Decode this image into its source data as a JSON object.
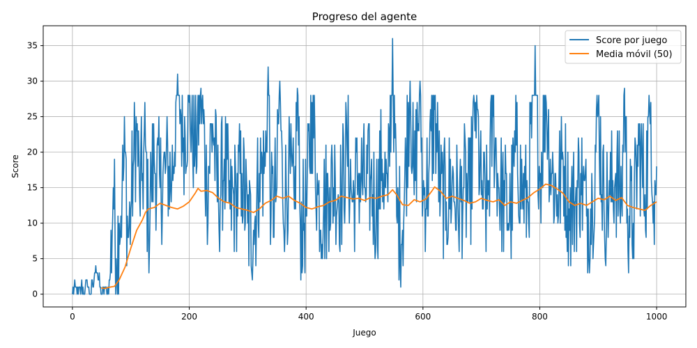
{
  "chart_data": {
    "type": "line",
    "title": "Progreso del agente",
    "xlabel": "Juego",
    "ylabel": "Score",
    "xlim": [
      -50,
      1050
    ],
    "ylim": [
      -1.8,
      37.8
    ],
    "xticks": [
      0,
      200,
      400,
      600,
      800,
      1000
    ],
    "yticks": [
      0,
      5,
      10,
      15,
      20,
      25,
      30,
      35
    ],
    "grid": true,
    "legend_position": "top-right",
    "colors": {
      "raw": "#1f77b4",
      "ma": "#ff7f0e"
    },
    "series": [
      {
        "name": "Score por juego",
        "kind": "raw",
        "x_start": 0,
        "anchors": [
          [
            0,
            0
          ],
          [
            5,
            1
          ],
          [
            10,
            0
          ],
          [
            15,
            1
          ],
          [
            20,
            0
          ],
          [
            25,
            2
          ],
          [
            30,
            0
          ],
          [
            35,
            1
          ],
          [
            40,
            4
          ],
          [
            45,
            2
          ],
          [
            50,
            0
          ],
          [
            55,
            1
          ],
          [
            60,
            0
          ],
          [
            65,
            3
          ],
          [
            70,
            15
          ],
          [
            75,
            5
          ],
          [
            80,
            10
          ],
          [
            85,
            14
          ],
          [
            90,
            20
          ],
          [
            95,
            8
          ],
          [
            100,
            12
          ],
          [
            105,
            19
          ],
          [
            110,
            23
          ],
          [
            115,
            14
          ],
          [
            120,
            17
          ],
          [
            125,
            21
          ],
          [
            130,
            9
          ],
          [
            135,
            16
          ],
          [
            140,
            19
          ],
          [
            150,
            15
          ],
          [
            160,
            18
          ],
          [
            170,
            16
          ],
          [
            180,
            31
          ],
          [
            190,
            22
          ],
          [
            200,
            27
          ],
          [
            210,
            20
          ],
          [
            220,
            29
          ],
          [
            230,
            15
          ],
          [
            240,
            24
          ],
          [
            250,
            13
          ],
          [
            260,
            19
          ],
          [
            270,
            12
          ],
          [
            280,
            14
          ],
          [
            290,
            17
          ],
          [
            300,
            10
          ],
          [
            310,
            9
          ],
          [
            320,
            17
          ],
          [
            330,
            18
          ],
          [
            335,
            32
          ],
          [
            340,
            11
          ],
          [
            350,
            15
          ],
          [
            355,
            30
          ],
          [
            360,
            13
          ],
          [
            370,
            17
          ],
          [
            380,
            12
          ],
          [
            385,
            29
          ],
          [
            390,
            10
          ],
          [
            400,
            11
          ],
          [
            410,
            27
          ],
          [
            420,
            14
          ],
          [
            430,
            12
          ],
          [
            440,
            15
          ],
          [
            450,
            16
          ],
          [
            460,
            14
          ],
          [
            470,
            21
          ],
          [
            480,
            13
          ],
          [
            490,
            17
          ],
          [
            500,
            15
          ],
          [
            510,
            16
          ],
          [
            520,
            12
          ],
          [
            530,
            19
          ],
          [
            540,
            13
          ],
          [
            548,
            36
          ],
          [
            555,
            11
          ],
          [
            565,
            9
          ],
          [
            578,
            30
          ],
          [
            585,
            14
          ],
          [
            595,
            30
          ],
          [
            600,
            13
          ],
          [
            610,
            17
          ],
          [
            620,
            26
          ],
          [
            630,
            14
          ],
          [
            640,
            13
          ],
          [
            650,
            16
          ],
          [
            660,
            12
          ],
          [
            670,
            15
          ],
          [
            680,
            13
          ],
          [
            690,
            27
          ],
          [
            700,
            14
          ],
          [
            710,
            12
          ],
          [
            720,
            25
          ],
          [
            730,
            15
          ],
          [
            740,
            13
          ],
          [
            750,
            11
          ],
          [
            760,
            21
          ],
          [
            770,
            14
          ],
          [
            780,
            13
          ],
          [
            792,
            35
          ],
          [
            800,
            16
          ],
          [
            810,
            28
          ],
          [
            820,
            17
          ],
          [
            830,
            14
          ],
          [
            840,
            19
          ],
          [
            850,
            12
          ],
          [
            860,
            13
          ],
          [
            870,
            17
          ],
          [
            880,
            11
          ],
          [
            890,
            13
          ],
          [
            900,
            26
          ],
          [
            910,
            12
          ],
          [
            920,
            14
          ],
          [
            930,
            17
          ],
          [
            940,
            13
          ],
          [
            945,
            29
          ],
          [
            950,
            12
          ],
          [
            960,
            10
          ],
          [
            970,
            21
          ],
          [
            980,
            14
          ],
          [
            990,
            27
          ],
          [
            995,
            13
          ],
          [
            1000,
            18
          ]
        ],
        "noise_amplitude": 9,
        "points": 1001
      },
      {
        "name": "Media móvil (50)",
        "kind": "ma",
        "values_xy": [
          [
            49,
            0.9
          ],
          [
            55,
            0.8
          ],
          [
            65,
            1.0
          ],
          [
            72,
            1.1
          ],
          [
            80,
            2.0
          ],
          [
            90,
            3.8
          ],
          [
            100,
            6.5
          ],
          [
            110,
            9.0
          ],
          [
            120,
            10.5
          ],
          [
            125,
            11.5
          ],
          [
            130,
            12.0
          ],
          [
            140,
            12.2
          ],
          [
            150,
            12.8
          ],
          [
            160,
            12.5
          ],
          [
            170,
            12.2
          ],
          [
            180,
            12.0
          ],
          [
            190,
            12.4
          ],
          [
            200,
            13.0
          ],
          [
            210,
            14.2
          ],
          [
            215,
            14.9
          ],
          [
            220,
            14.5
          ],
          [
            230,
            14.6
          ],
          [
            240,
            14.3
          ],
          [
            250,
            13.5
          ],
          [
            260,
            13.0
          ],
          [
            270,
            12.8
          ],
          [
            280,
            12.2
          ],
          [
            290,
            12.0
          ],
          [
            300,
            11.8
          ],
          [
            310,
            11.5
          ],
          [
            320,
            12.0
          ],
          [
            330,
            12.8
          ],
          [
            340,
            13.2
          ],
          [
            350,
            13.8
          ],
          [
            360,
            13.5
          ],
          [
            370,
            13.8
          ],
          [
            380,
            13.2
          ],
          [
            390,
            12.8
          ],
          [
            400,
            12.2
          ],
          [
            410,
            12.0
          ],
          [
            420,
            12.3
          ],
          [
            430,
            12.5
          ],
          [
            440,
            13.0
          ],
          [
            450,
            13.2
          ],
          [
            460,
            13.8
          ],
          [
            470,
            13.6
          ],
          [
            480,
            13.4
          ],
          [
            490,
            13.5
          ],
          [
            500,
            13.2
          ],
          [
            510,
            13.6
          ],
          [
            520,
            13.5
          ],
          [
            530,
            13.8
          ],
          [
            540,
            14.0
          ],
          [
            548,
            14.7
          ],
          [
            555,
            14.0
          ],
          [
            565,
            12.6
          ],
          [
            575,
            12.5
          ],
          [
            585,
            13.3
          ],
          [
            595,
            13.0
          ],
          [
            605,
            13.4
          ],
          [
            615,
            14.5
          ],
          [
            620,
            15.1
          ],
          [
            630,
            14.5
          ],
          [
            640,
            13.5
          ],
          [
            650,
            13.8
          ],
          [
            660,
            13.5
          ],
          [
            670,
            13.2
          ],
          [
            680,
            12.8
          ],
          [
            690,
            13.0
          ],
          [
            700,
            13.5
          ],
          [
            710,
            13.2
          ],
          [
            720,
            13.0
          ],
          [
            730,
            13.3
          ],
          [
            740,
            12.5
          ],
          [
            750,
            13.0
          ],
          [
            760,
            12.8
          ],
          [
            770,
            13.2
          ],
          [
            780,
            13.6
          ],
          [
            790,
            14.3
          ],
          [
            800,
            14.8
          ],
          [
            810,
            15.5
          ],
          [
            820,
            15.3
          ],
          [
            830,
            14.8
          ],
          [
            840,
            14.2
          ],
          [
            850,
            13.0
          ],
          [
            860,
            12.5
          ],
          [
            870,
            12.8
          ],
          [
            880,
            12.5
          ],
          [
            890,
            13.0
          ],
          [
            900,
            13.5
          ],
          [
            910,
            13.3
          ],
          [
            920,
            13.8
          ],
          [
            930,
            13.2
          ],
          [
            940,
            13.6
          ],
          [
            950,
            12.5
          ],
          [
            960,
            12.2
          ],
          [
            970,
            12.0
          ],
          [
            980,
            11.8
          ],
          [
            990,
            12.5
          ],
          [
            1000,
            13.0
          ]
        ]
      }
    ]
  }
}
